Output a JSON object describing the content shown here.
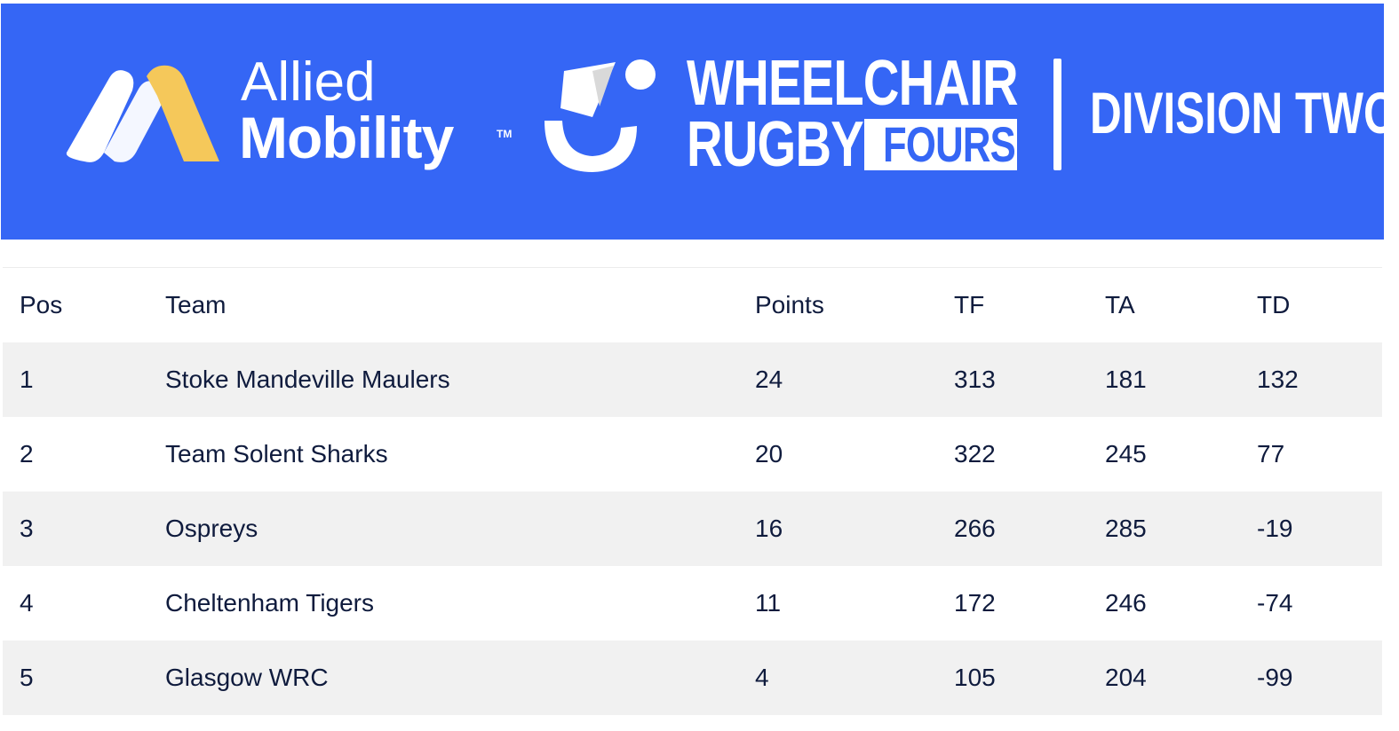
{
  "banner": {
    "background_color": "#3566f5",
    "sponsor": {
      "line1": "Allied",
      "line2": "Mobility",
      "tm": "TM",
      "accent_color": "#f5c85a"
    },
    "brand": {
      "line1": "WHEELCHAIR",
      "line2": "RUGBY",
      "boxed": "FOURS"
    },
    "division": "DIVISION TWO"
  },
  "table": {
    "headers": [
      "Pos",
      "Team",
      "Points",
      "TF",
      "TA",
      "TD"
    ],
    "rows": [
      {
        "pos": "1",
        "team": "Stoke Mandeville Maulers",
        "points": "24",
        "tf": "313",
        "ta": "181",
        "td": "132"
      },
      {
        "pos": "2",
        "team": "Team Solent Sharks",
        "points": "20",
        "tf": "322",
        "ta": "245",
        "td": "77"
      },
      {
        "pos": "3",
        "team": "Ospreys",
        "points": "16",
        "tf": "266",
        "ta": "285",
        "td": "-19"
      },
      {
        "pos": "4",
        "team": "Cheltenham Tigers",
        "points": "11",
        "tf": "172",
        "ta": "246",
        "td": "-74"
      },
      {
        "pos": "5",
        "team": "Glasgow WRC",
        "points": "4",
        "tf": "105",
        "ta": "204",
        "td": "-99"
      }
    ]
  }
}
